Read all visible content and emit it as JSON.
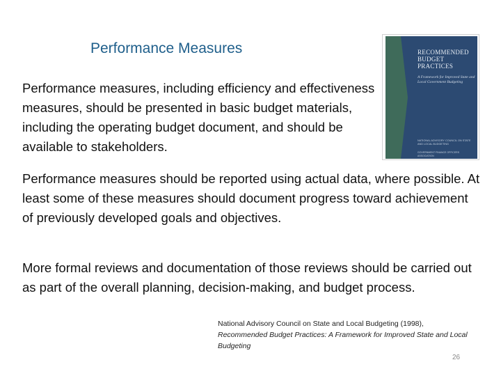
{
  "slide": {
    "title": "Performance Measures",
    "paragraph_1": "Performance measures, including efficiency and effectiveness measures, should be presented in basic budget materials, including the operating budget document, and should be available to stakeholders.",
    "paragraph_2": "Performance measures should be reported using actual data, where possible. At least some of these measures should document progress toward achievement of previously developed goals and objectives.",
    "paragraph_3": "More formal reviews and documentation of those reviews should be carried out as part of the overall planning, decision-making, and budget process.",
    "citation": {
      "authors": "National Advisory Council on State and Local Budgeting (1998),",
      "work_title": "Recommended Budget Practices: A Framework for Improved State and Local Budgeting"
    },
    "slide_number": "26"
  },
  "book_cover": {
    "title": "Recommended Budget Practices",
    "subtitle": "A Framework for Improved State and Local Government Budgeting",
    "council": "National Advisory Council on State and Local Budgeting",
    "publisher": "Government Finance Officers Association",
    "cover_color": "#2c4a72",
    "spine_color": "#3f6b5a"
  },
  "colors": {
    "title": "#1f5f8b",
    "text": "#111111"
  }
}
